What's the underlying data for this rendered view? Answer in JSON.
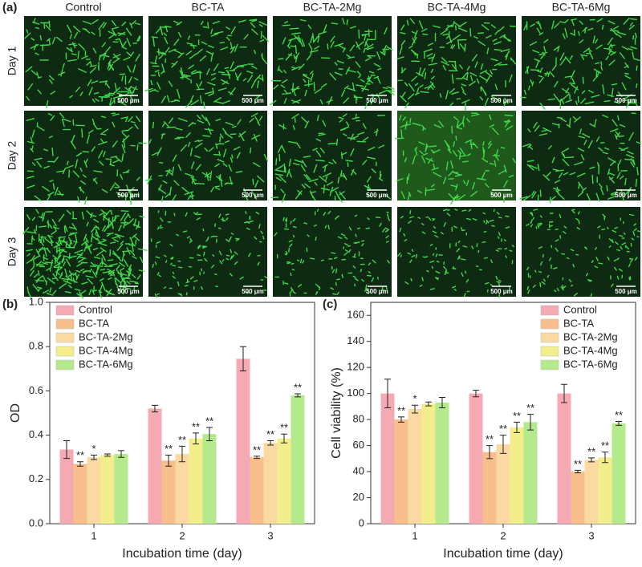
{
  "panels": {
    "a": "(a)",
    "b": "(b)",
    "c": "(c)"
  },
  "micrographs": {
    "columns": [
      "Control",
      "BC-TA",
      "BC-TA-2Mg",
      "BC-TA-4Mg",
      "BC-TA-6Mg"
    ],
    "rows": [
      "Day 1",
      "Day 2",
      "Day 3"
    ],
    "scale_bar": "500 μm"
  },
  "chart_data": [
    {
      "type": "bar",
      "x_label": "Incubation time (day)",
      "y_label": "OD",
      "categories": [
        "1",
        "2",
        "3"
      ],
      "ylim": [
        0,
        1.0
      ],
      "yticks": [
        {
          "value": 0,
          "label": "0.0"
        },
        0.2,
        0.4,
        0.6,
        0.8,
        {
          "value": 1.0,
          "label": "1.0"
        }
      ],
      "legend": "upper left",
      "series": [
        {
          "name": "Control",
          "color": "#f5a9b2",
          "values": [
            0.335,
            0.52,
            0.745
          ],
          "errors": [
            0.04,
            0.015,
            0.055
          ],
          "annotations": [
            null,
            null,
            null
          ]
        },
        {
          "name": "BC-TA",
          "color": "#f8be8c",
          "values": [
            0.27,
            0.285,
            0.3
          ],
          "errors": [
            0.01,
            0.025,
            0.005
          ],
          "annotations": [
            "**",
            "**",
            "**"
          ]
        },
        {
          "name": "BC-TA-2Mg",
          "color": "#fbd9a2",
          "values": [
            0.3,
            0.315,
            0.365
          ],
          "errors": [
            0.01,
            0.035,
            0.01
          ],
          "annotations": [
            "*",
            "**",
            "**"
          ]
        },
        {
          "name": "BC-TA-4Mg",
          "color": "#f3ee8c",
          "values": [
            0.31,
            0.385,
            0.385
          ],
          "errors": [
            0.005,
            0.025,
            0.02
          ],
          "annotations": [
            null,
            "**",
            "**"
          ]
        },
        {
          "name": "BC-TA-6Mg",
          "color": "#b5ea8c",
          "values": [
            0.315,
            0.405,
            0.58
          ],
          "errors": [
            0.015,
            0.03,
            0.007
          ],
          "annotations": [
            null,
            "**",
            "**"
          ]
        }
      ]
    },
    {
      "type": "bar",
      "x_label": "Incubation time (day)",
      "y_label": "Cell viability (%)",
      "categories": [
        "1",
        "2",
        "3"
      ],
      "ylim": [
        0,
        170
      ],
      "yticks": [
        0,
        20,
        40,
        60,
        80,
        100,
        120,
        140,
        160
      ],
      "legend": "upper right",
      "series": [
        {
          "name": "Control",
          "color": "#f5a9b2",
          "values": [
            100,
            100,
            100
          ],
          "errors": [
            11,
            2.5,
            7
          ],
          "annotations": [
            null,
            null,
            null
          ]
        },
        {
          "name": "BC-TA",
          "color": "#f8be8c",
          "values": [
            80,
            55,
            40
          ],
          "errors": [
            2,
            5,
            1
          ],
          "annotations": [
            "**",
            "**",
            "**"
          ]
        },
        {
          "name": "BC-TA-2Mg",
          "color": "#fbd9a2",
          "values": [
            88,
            61,
            49
          ],
          "errors": [
            3,
            7,
            1.5
          ],
          "annotations": [
            "*",
            "**",
            "**"
          ]
        },
        {
          "name": "BC-TA-4Mg",
          "color": "#f3ee8c",
          "values": [
            92,
            74,
            51
          ],
          "errors": [
            1.5,
            4,
            4
          ],
          "annotations": [
            null,
            "**",
            "**"
          ]
        },
        {
          "name": "BC-TA-6Mg",
          "color": "#b5ea8c",
          "values": [
            93,
            78,
            77
          ],
          "errors": [
            4,
            6,
            1.5
          ],
          "annotations": [
            null,
            "**",
            "**"
          ]
        }
      ]
    }
  ]
}
